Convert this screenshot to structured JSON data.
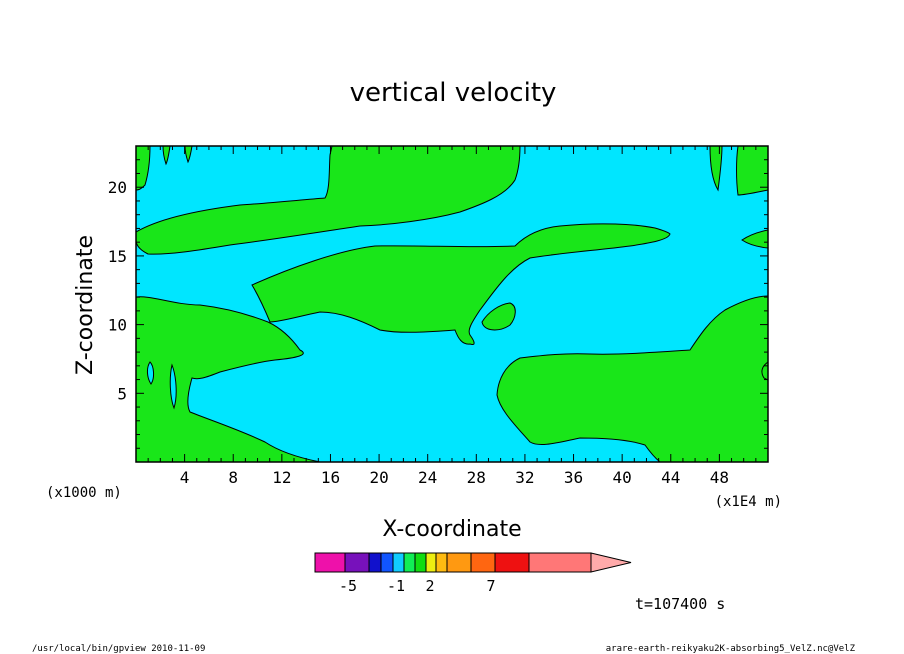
{
  "chart_data": {
    "type": "contour",
    "title": "vertical velocity",
    "xlabel": "X-coordinate",
    "ylabel": "Z-coordinate",
    "x_unit_note": "(x1E4 m)",
    "y_unit_note": "(x1000 m)",
    "xlim": [
      0,
      52
    ],
    "ylim": [
      0,
      23
    ],
    "x_ticks": [
      4,
      8,
      12,
      16,
      20,
      24,
      28,
      32,
      36,
      40,
      44,
      48
    ],
    "y_ticks": [
      5,
      10,
      15,
      20
    ],
    "grid": false,
    "fill_colors": {
      "negative_region": "#00e6ff",
      "positive_region": "#19e619"
    },
    "colorbar": {
      "tick_labels": [
        "-5",
        "-1",
        "2",
        "7"
      ],
      "colors": [
        "#ee11aa",
        "#7711bb",
        "#1111cc",
        "#1155ff",
        "#11ccff",
        "#11ee55",
        "#11dd11",
        "#eeee11",
        "#ffbb11",
        "#ff9911",
        "#ff6611",
        "#ee1111",
        "#ff7777",
        "#ffaaaa"
      ]
    },
    "time_label": "t=107400 s",
    "footer_left": "/usr/local/bin/gpview  2010-11-09",
    "footer_right": "arare-earth-reikyaku2K-absorbing5_VelZ.nc@VelZ"
  }
}
